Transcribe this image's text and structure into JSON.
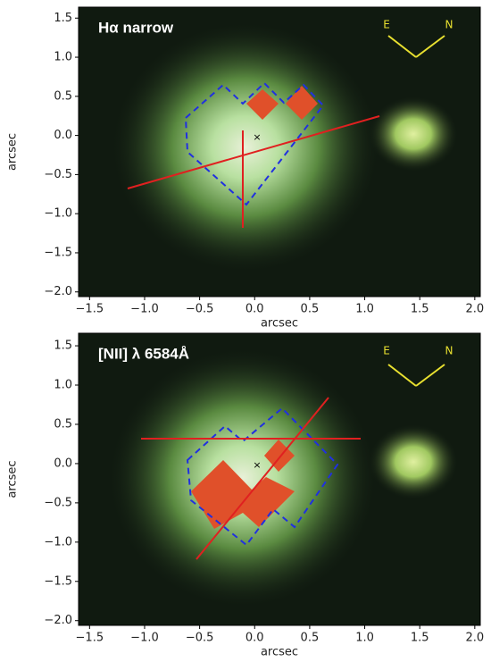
{
  "chart_data": [
    {
      "type": "image",
      "title": "Hα narrow",
      "xlabel": "arcsec",
      "ylabel": "arcsec",
      "xlim": [
        -1.6,
        2.05
      ],
      "ylim": [
        -2.06,
        1.64
      ],
      "xticks": [
        {
          "value": -1.5,
          "label": "−1.5"
        },
        {
          "value": -1,
          "label": "−1.0"
        },
        {
          "value": -0.5,
          "label": "−0.5"
        },
        {
          "value": 0,
          "label": "0.0"
        },
        {
          "value": 0.5,
          "label": "0.5"
        },
        {
          "value": 1,
          "label": "1.0"
        },
        {
          "value": 1.5,
          "label": "1.5"
        },
        {
          "value": 2,
          "label": "2.0"
        }
      ],
      "yticks": [
        {
          "value": 1.5,
          "label": "1.5"
        },
        {
          "value": 1,
          "label": "1.0"
        },
        {
          "value": 0.5,
          "label": "0.5"
        },
        {
          "value": 0,
          "label": "0.0"
        },
        {
          "value": -0.5,
          "label": "−0.5"
        },
        {
          "value": -1,
          "label": "−1.0"
        },
        {
          "value": -1.5,
          "label": "−1.5"
        },
        {
          "value": -2,
          "label": "−2.0"
        }
      ],
      "annotations": [
        "E",
        "N"
      ]
    },
    {
      "type": "image",
      "title": "[NII] λ 6584Å",
      "xlabel": "arcsec",
      "ylabel": "arcsec",
      "xlim": [
        -1.6,
        2.05
      ],
      "ylim": [
        -2.06,
        1.66
      ],
      "xticks": [
        {
          "value": -1.5,
          "label": "−1.5"
        },
        {
          "value": -1,
          "label": "−1.0"
        },
        {
          "value": -0.5,
          "label": "−0.5"
        },
        {
          "value": 0,
          "label": "0.0"
        },
        {
          "value": 0.5,
          "label": "0.5"
        },
        {
          "value": 1,
          "label": "1.0"
        },
        {
          "value": 1.5,
          "label": "1.5"
        },
        {
          "value": 2,
          "label": "2.0"
        }
      ],
      "yticks": [
        {
          "value": 1.5,
          "label": "1.5"
        },
        {
          "value": 1,
          "label": "1.0"
        },
        {
          "value": 0.5,
          "label": "0.5"
        },
        {
          "value": 0,
          "label": "0.0"
        },
        {
          "value": -0.5,
          "label": "−0.5"
        },
        {
          "value": -1,
          "label": "−1.0"
        },
        {
          "value": -1.5,
          "label": "−1.5"
        },
        {
          "value": -2,
          "label": "−2.0"
        }
      ],
      "annotations": [
        "E",
        "N"
      ]
    }
  ]
}
